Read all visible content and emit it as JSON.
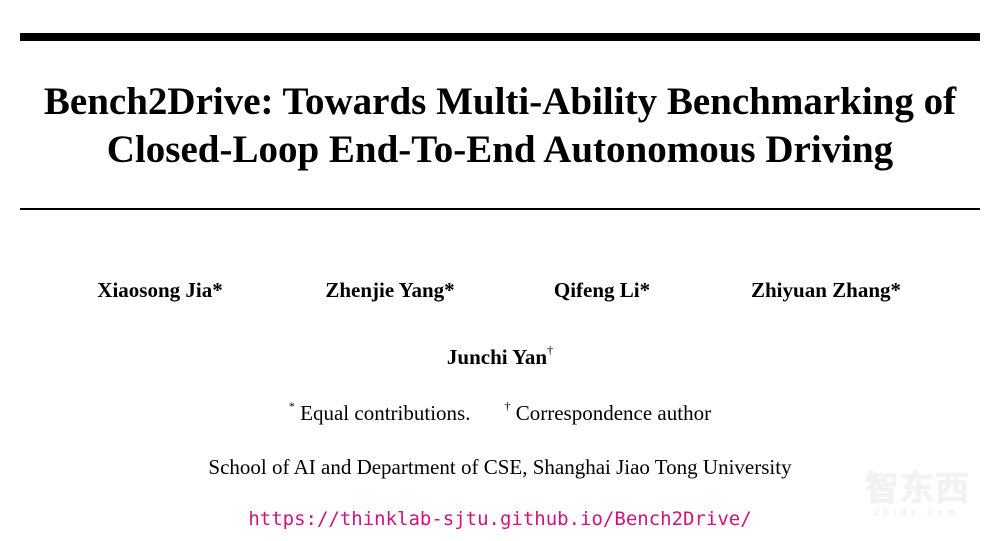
{
  "title": {
    "line1": "Bench2Drive: Towards Multi-Ability Benchmarking of",
    "line2": "Closed-Loop End-To-End Autonomous Driving"
  },
  "authors": [
    {
      "name": "Xiaosong Jia",
      "mark": "*"
    },
    {
      "name": "Zhenjie Yang",
      "mark": "*"
    },
    {
      "name": "Qifeng Li",
      "mark": "*"
    },
    {
      "name": "Zhiyuan Zhang",
      "mark": "*"
    },
    {
      "name": "Junchi Yan",
      "mark": "†"
    }
  ],
  "footnotes": {
    "equal_mark": "*",
    "equal_text": "Equal contributions.",
    "corr_mark": "†",
    "corr_text": "Correspondence author"
  },
  "affiliation": "School of AI and Department of CSE, Shanghai Jiao Tong University",
  "url": "https://thinklab-sjtu.github.io/Bench2Drive/",
  "colors": {
    "url": "#d1127f"
  },
  "watermark": {
    "cn": "智东西",
    "en": "zhidx.com"
  }
}
